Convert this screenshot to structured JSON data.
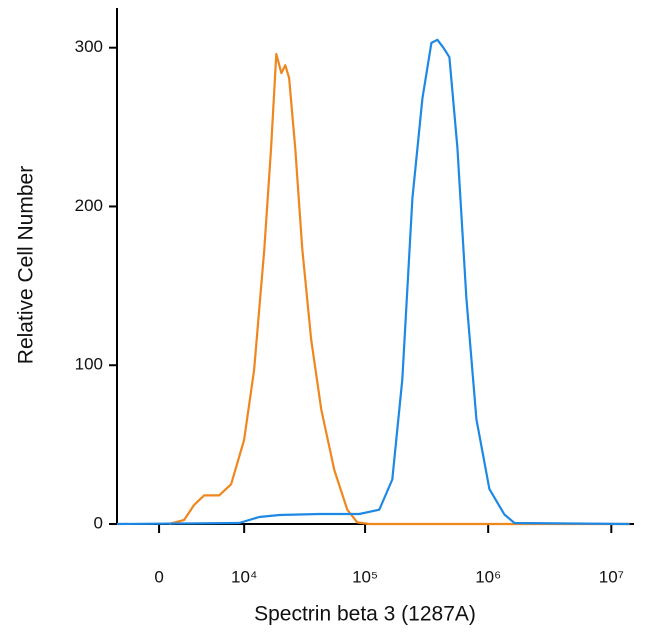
{
  "chart_data": {
    "type": "line",
    "x_label": "Spectrin beta 3 (1287A)",
    "y_label": "Relative Cell Number",
    "xscale": "asinh",
    "xlim": [
      -3700,
      15000000
    ],
    "xticks": [
      0,
      {
        "value": 10000,
        "label": "10⁴"
      },
      {
        "value": 100000,
        "label": "10⁵"
      },
      {
        "value": 1000000,
        "label": "10⁶"
      },
      {
        "value": 10000000,
        "label": "10⁷"
      }
    ],
    "ylim": [
      0,
      325
    ],
    "yticks": [
      0,
      100,
      200,
      300
    ],
    "series": [
      {
        "color": "#f0861e",
        "x": [
          800,
          2060,
          2990,
          4020,
          5840,
          7620,
          9990,
          12200,
          14900,
          17000,
          18800,
          20700,
          22300,
          24000,
          26900,
          30800,
          36400,
          44000,
          56200,
          71700,
          86500,
          108000,
          14070000
        ],
        "values": [
          0,
          2.5,
          12,
          18,
          18,
          25,
          53,
          97,
          173,
          237,
          296,
          284,
          289,
          281,
          237,
          173,
          116,
          72,
          34,
          9,
          1,
          0,
          0
        ]
      },
      {
        "color": "#1e88e5",
        "x": [
          -3700,
          9030,
          13500,
          19900,
          42400,
          89800,
          130500,
          166600,
          200700,
          242200,
          292000,
          345700,
          386800,
          432600,
          484500,
          562700,
          665800,
          802800,
          1023700,
          1354500,
          1634600,
          14070000
        ],
        "values": [
          0,
          0.6,
          4.4,
          5.7,
          6.3,
          6.3,
          9,
          28,
          91,
          205,
          268,
          303,
          305,
          300,
          294,
          237,
          142,
          66,
          22,
          6,
          0.6,
          0
        ]
      }
    ]
  }
}
